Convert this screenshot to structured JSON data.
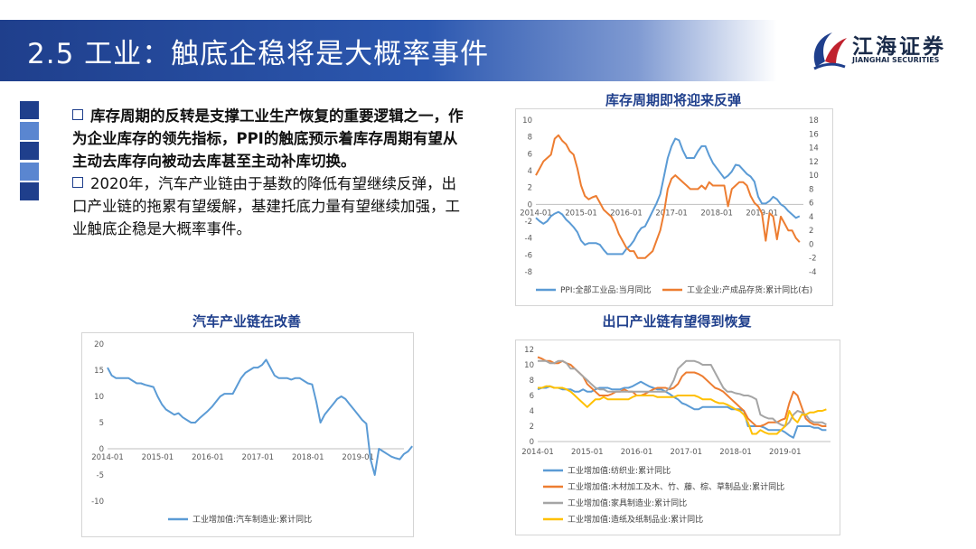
{
  "header": {
    "title": "2.5 工业：触底企稳将是大概率事件"
  },
  "logo": {
    "name": "江海证券",
    "en": "JIANGHAI SECURITIES"
  },
  "colors": {
    "blue": "#5b9bd5",
    "orange": "#ed7d31",
    "gray": "#a5a5a5",
    "yellow": "#ffc000",
    "title": "#1f3f8c"
  },
  "bullets": {
    "p1": "库存周期的反转是支撑工业生产恢复的重要逻辑之一，作为企业库存的领先指标，PPI的触底预示着库存周期有望从主动去库存向被动去库甚至主动补库切换。",
    "p2": "2020年，汽车产业链由于基数的降低有望继续反弹，出口产业链的拖累有望缓解，基建托底力量有望继续加强，工业触底企稳是大概率事件。"
  },
  "chart_data": [
    {
      "type": "line",
      "title": "库存周期即将迎来反弹",
      "x_ticks": [
        "2014-01",
        "2015-01",
        "2016-01",
        "2017-01",
        "2018-01",
        "2019-01"
      ],
      "ylim": [
        -8,
        10
      ],
      "y_ticks": [
        10,
        8,
        6,
        4,
        2,
        0,
        -2,
        -4,
        -6,
        -8
      ],
      "y2lim": [
        -4,
        18
      ],
      "y2_ticks": [
        18,
        16,
        14,
        12,
        10,
        8,
        6,
        4,
        2,
        0,
        -2,
        -4
      ],
      "legend": "bottom",
      "series": [
        {
          "name": "PPI:全部工业品:当月同比",
          "axis": "left",
          "color": "#5b9bd5",
          "values": [
            -1.6,
            -2.0,
            -2.3,
            -2.0,
            -1.4,
            -1.1,
            -0.9,
            -1.2,
            -1.8,
            -2.2,
            -2.7,
            -3.3,
            -4.3,
            -4.8,
            -4.6,
            -4.6,
            -4.6,
            -4.8,
            -5.4,
            -5.9,
            -5.9,
            -5.9,
            -5.9,
            -5.9,
            -5.3,
            -4.9,
            -4.3,
            -3.4,
            -2.8,
            -2.6,
            -1.7,
            -0.8,
            0.1,
            1.2,
            3.3,
            5.5,
            6.9,
            7.8,
            7.6,
            6.4,
            5.5,
            5.5,
            5.5,
            6.3,
            6.9,
            6.9,
            5.8,
            4.9,
            4.3,
            3.7,
            3.1,
            3.4,
            3.9,
            4.7,
            4.6,
            4.1,
            3.6,
            3.3,
            2.7,
            0.9,
            0.1,
            0.1,
            0.4,
            0.9,
            0.6,
            0.0,
            -0.3,
            -0.8,
            -1.2,
            -1.6,
            -1.4
          ]
        },
        {
          "name": "工业企业:产成品存货:累计同比(右)",
          "axis": "right",
          "color": "#ed7d31",
          "values": [
            10.0,
            11.0,
            12.0,
            12.5,
            13.0,
            15.3,
            15.8,
            15.0,
            14.5,
            13.5,
            13.0,
            11.0,
            8.5,
            7.0,
            6.5,
            6.8,
            7.0,
            6.0,
            5.0,
            4.5,
            4.0,
            3.0,
            1.5,
            0.5,
            -0.5,
            -1.0,
            -1.0,
            -2.0,
            -2.0,
            -2.0,
            -1.5,
            -1.0,
            0.5,
            2.0,
            4.5,
            8.0,
            9.5,
            10.0,
            9.5,
            9.0,
            8.5,
            8.0,
            8.0,
            8.0,
            8.5,
            8.0,
            9.0,
            8.5,
            8.5,
            8.5,
            8.5,
            5.5,
            8.0,
            8.5,
            9.0,
            9.0,
            8.5,
            7.0,
            6.0,
            5.5,
            4.5,
            0.5,
            4.5,
            4.0,
            0.7,
            4.0,
            3.0,
            2.0,
            2.0,
            0.9,
            0.3
          ]
        }
      ]
    },
    {
      "type": "line",
      "title": "汽车产业链在改善",
      "x_ticks": [
        "2014-01",
        "2015-01",
        "2016-01",
        "2017-01",
        "2018-01",
        "2019-01"
      ],
      "ylim": [
        -10,
        20
      ],
      "y_ticks": [
        20,
        15,
        10,
        5,
        0,
        -5,
        -10
      ],
      "legend": "bottom",
      "series": [
        {
          "name": "工业增加值:汽车制造业:累计同比",
          "color": "#5b9bd5",
          "values": [
            15.5,
            14.0,
            13.5,
            13.5,
            13.5,
            13.5,
            13.0,
            12.5,
            12.5,
            12.2,
            12.0,
            11.8,
            10.0,
            8.5,
            7.5,
            7.0,
            6.5,
            6.8,
            6.0,
            5.5,
            5.0,
            5.0,
            5.8,
            6.5,
            7.2,
            8.0,
            9.0,
            10.0,
            10.5,
            10.5,
            10.5,
            12.0,
            13.5,
            14.5,
            15.0,
            15.5,
            15.5,
            16.0,
            17.0,
            15.5,
            14.0,
            13.5,
            13.5,
            13.5,
            13.2,
            13.5,
            13.5,
            13.0,
            12.5,
            12.3,
            9.0,
            5.0,
            6.5,
            7.5,
            8.5,
            9.5,
            10.0,
            9.5,
            8.5,
            7.5,
            6.5,
            5.5,
            4.8,
            -2.0,
            -5.0,
            0.0,
            -0.5,
            -1.0,
            -1.5,
            -1.8,
            -2.0,
            -1.0,
            -0.5,
            0.5
          ]
        }
      ]
    },
    {
      "type": "line",
      "title": "出口产业链有望得到恢复",
      "x_ticks": [
        "2014-01",
        "2015-01",
        "2016-01",
        "2017-01",
        "2018-01",
        "2019-01"
      ],
      "ylim": [
        0,
        12
      ],
      "y_ticks": [
        12,
        10,
        8,
        6,
        4,
        2,
        0
      ],
      "legend": "bottom",
      "series": [
        {
          "name": "工业增加值:纺织业:累计同比",
          "color": "#5b9bd5",
          "values": [
            6.8,
            7.0,
            7.0,
            7.2,
            7.0,
            7.0,
            6.8,
            6.8,
            6.8,
            6.5,
            6.5,
            6.8,
            6.5,
            6.5,
            6.8,
            7.0,
            7.0,
            7.0,
            6.8,
            6.8,
            6.8,
            7.0,
            7.0,
            7.2,
            7.5,
            7.8,
            7.5,
            7.2,
            7.0,
            6.8,
            6.8,
            6.5,
            6.2,
            5.8,
            5.5,
            5.0,
            4.8,
            4.5,
            4.2,
            4.2,
            4.5,
            4.5,
            4.5,
            4.5,
            4.5,
            4.5,
            4.5,
            4.2,
            4.2,
            4.2,
            4.0,
            2.0,
            2.0,
            2.0,
            2.0,
            1.8,
            1.5,
            1.5,
            1.5,
            1.5,
            1.2,
            0.8,
            0.5,
            2.0,
            2.0,
            2.0,
            2.0,
            1.8,
            1.8,
            1.5,
            1.5
          ]
        },
        {
          "name": "工业增加值:木材加工及木、竹、藤、棕、草制品业:累计同比",
          "color": "#ed7d31",
          "values": [
            11.0,
            10.8,
            10.5,
            10.5,
            10.2,
            10.2,
            10.5,
            10.2,
            10.0,
            9.5,
            9.0,
            8.5,
            7.5,
            7.0,
            6.5,
            6.0,
            6.0,
            6.0,
            6.2,
            6.5,
            6.5,
            6.8,
            6.5,
            6.5,
            6.0,
            6.0,
            6.2,
            6.5,
            6.8,
            7.0,
            7.0,
            7.0,
            6.8,
            7.0,
            7.5,
            8.5,
            9.0,
            9.0,
            9.0,
            8.8,
            8.5,
            8.0,
            7.5,
            7.0,
            6.8,
            6.5,
            6.0,
            5.5,
            5.0,
            4.5,
            4.0,
            3.0,
            2.5,
            2.0,
            2.0,
            2.2,
            2.5,
            2.5,
            2.5,
            2.8,
            3.0,
            5.0,
            6.5,
            6.0,
            4.5,
            3.0,
            2.5,
            2.2,
            2.2,
            2.0,
            2.0
          ]
        },
        {
          "name": "工业增加值:家具制造业:累计同比",
          "color": "#a5a5a5",
          "values": [
            10.5,
            10.5,
            10.5,
            10.2,
            10.2,
            10.5,
            10.5,
            10.2,
            9.5,
            9.5,
            9.0,
            8.5,
            8.0,
            7.5,
            7.0,
            6.8,
            6.8,
            6.5,
            6.5,
            6.5,
            6.5,
            6.5,
            6.5,
            6.5,
            6.5,
            6.5,
            6.5,
            6.5,
            6.5,
            6.5,
            6.5,
            6.5,
            7.0,
            8.0,
            9.5,
            10.0,
            10.5,
            10.5,
            10.5,
            10.3,
            10.0,
            10.0,
            10.0,
            9.0,
            8.0,
            7.0,
            6.5,
            6.5,
            6.3,
            6.2,
            6.0,
            6.0,
            5.8,
            5.5,
            3.5,
            3.2,
            3.0,
            3.0,
            2.5,
            2.2,
            2.0,
            2.5,
            3.5,
            4.0,
            3.8,
            3.5,
            2.8,
            2.5,
            2.5,
            2.5,
            2.2
          ]
        },
        {
          "name": "工业增加值:造纸及纸制品业:累计同比",
          "color": "#ffc000",
          "values": [
            7.0,
            7.0,
            7.2,
            7.2,
            7.0,
            7.0,
            7.0,
            6.8,
            6.5,
            6.0,
            5.5,
            5.0,
            4.5,
            5.0,
            5.5,
            5.5,
            5.8,
            5.5,
            5.5,
            5.5,
            5.5,
            5.5,
            5.5,
            5.8,
            6.0,
            6.0,
            6.0,
            6.0,
            6.0,
            5.8,
            5.8,
            5.8,
            5.8,
            5.8,
            6.0,
            6.0,
            6.0,
            6.0,
            6.0,
            5.8,
            5.5,
            5.5,
            5.5,
            5.2,
            5.0,
            5.0,
            4.8,
            4.5,
            4.2,
            4.0,
            3.5,
            2.5,
            1.0,
            1.0,
            1.5,
            1.2,
            1.0,
            1.0,
            1.0,
            1.5,
            2.0,
            4.0,
            3.0,
            2.5,
            3.5,
            3.5,
            3.8,
            3.8,
            4.0,
            4.0,
            4.2
          ]
        }
      ]
    }
  ]
}
